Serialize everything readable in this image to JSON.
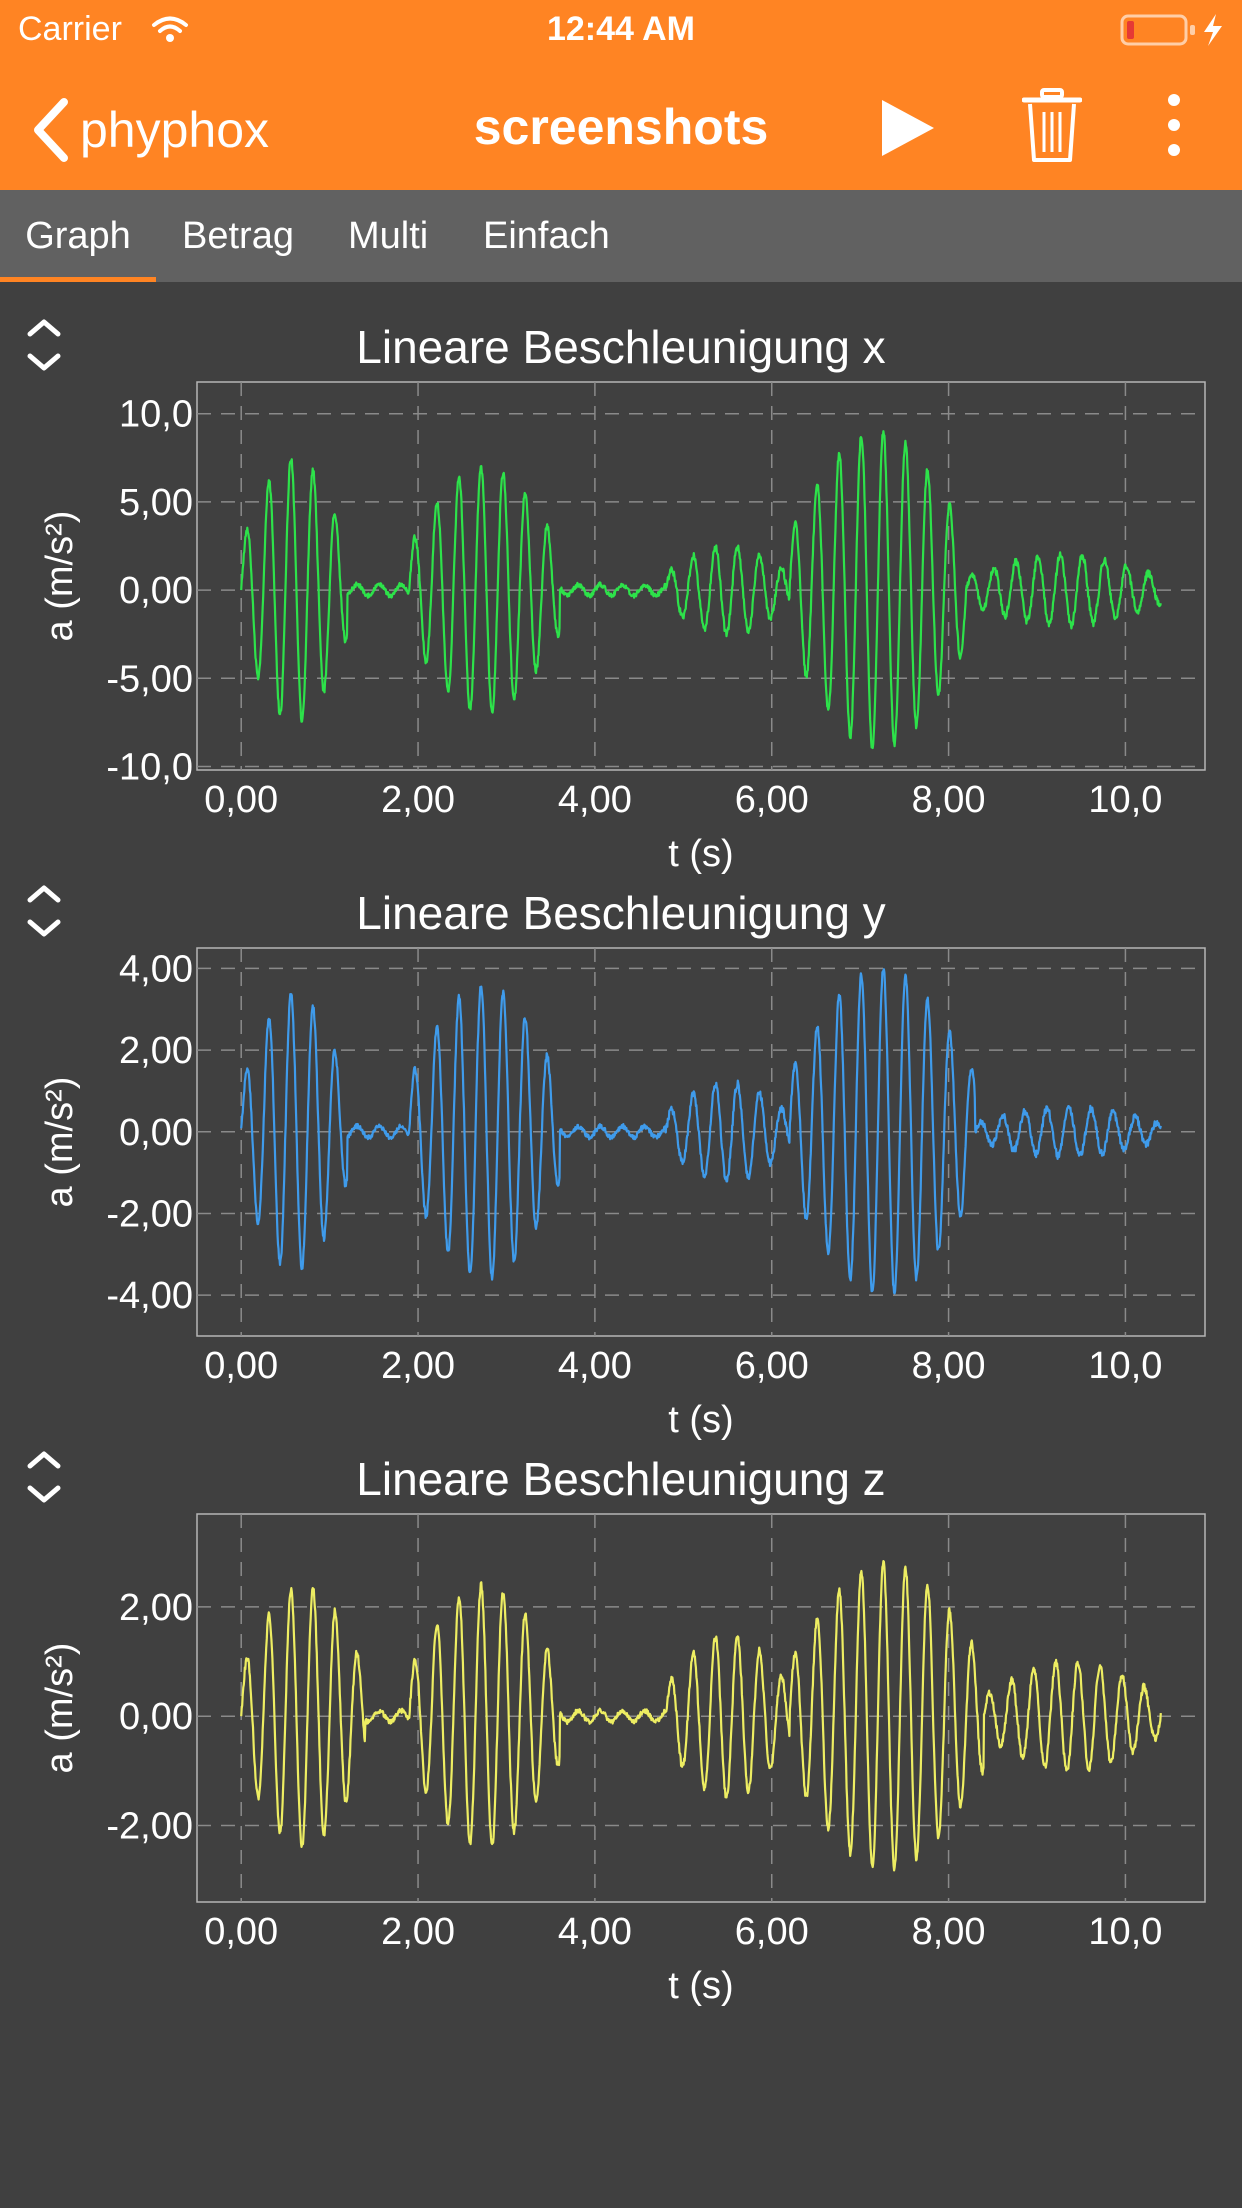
{
  "status_bar": {
    "carrier": "Carrier",
    "time": "12:44 AM",
    "battery_level": 0.1,
    "charging": true
  },
  "nav": {
    "back_label": "phyphox",
    "title": "screenshots",
    "play_icon": "play-icon",
    "delete_icon": "trash-icon",
    "more_icon": "more-vertical-icon"
  },
  "tabs": [
    {
      "label": "Graph",
      "selected": true
    },
    {
      "label": "Betrag",
      "selected": false
    },
    {
      "label": "Multi",
      "selected": false
    },
    {
      "label": "Einfach",
      "selected": false
    }
  ],
  "colors": {
    "accent": "#FF8423",
    "background": "#404040",
    "tabbar": "#616161",
    "x_series": "#2DE24A",
    "y_series": "#3F9BEB",
    "z_series": "#EDED62"
  },
  "chart_data": [
    {
      "type": "line",
      "title": "Lineare Beschleunigung x",
      "xlabel": "t (s)",
      "ylabel": "a (m/s²)",
      "xlim": [
        -0.5,
        10.9
      ],
      "ylim": [
        -10.2,
        11.8
      ],
      "xticks": [
        "0,00",
        "2,00",
        "4,00",
        "6,00",
        "8,00",
        "10,0"
      ],
      "yticks": [
        "10,0",
        "5,00",
        "0,00",
        "-5,00",
        "-10,0"
      ],
      "series": [
        {
          "color": "#2DE24A",
          "bursts": [
            {
              "t0": 0.0,
              "t1": 1.2,
              "amp": 7.5,
              "freq": 4.0
            },
            {
              "t0": 1.9,
              "t1": 3.6,
              "amp": 7.0,
              "freq": 4.0
            },
            {
              "t0": 4.8,
              "t1": 6.2,
              "amp": 2.5,
              "freq": 4.0
            },
            {
              "t0": 6.2,
              "t1": 8.2,
              "amp": 9.0,
              "freq": 4.0
            },
            {
              "t0": 8.2,
              "t1": 10.4,
              "amp": 2.0,
              "freq": 4.0
            }
          ],
          "t_end": 10.4
        }
      ]
    },
    {
      "type": "line",
      "title": "Lineare Beschleunigung y",
      "xlabel": "t (s)",
      "ylabel": "a (m/s²)",
      "xlim": [
        -0.5,
        10.9
      ],
      "ylim": [
        -5.0,
        4.5
      ],
      "xticks": [
        "0,00",
        "2,00",
        "4,00",
        "6,00",
        "8,00",
        "10,0"
      ],
      "yticks": [
        "4,00",
        "2,00",
        "0,00",
        "-2,00",
        "-4,00"
      ],
      "series": [
        {
          "color": "#3F9BEB",
          "bursts": [
            {
              "t0": 0.0,
              "t1": 1.2,
              "amp": 3.4,
              "freq": 4.0
            },
            {
              "t0": 1.9,
              "t1": 3.6,
              "amp": 3.6,
              "freq": 4.0
            },
            {
              "t0": 4.8,
              "t1": 6.2,
              "amp": 1.2,
              "freq": 4.0
            },
            {
              "t0": 6.2,
              "t1": 8.3,
              "amp": 4.0,
              "freq": 4.0
            },
            {
              "t0": 8.3,
              "t1": 10.4,
              "amp": 0.6,
              "freq": 4.0
            }
          ],
          "t_end": 10.4
        }
      ]
    },
    {
      "type": "line",
      "title": "Lineare Beschleunigung z",
      "xlabel": "t (s)",
      "ylabel": "a (m/s²)",
      "xlim": [
        -0.5,
        10.9
      ],
      "ylim": [
        -3.4,
        3.7
      ],
      "xticks": [
        "0,00",
        "2,00",
        "4,00",
        "6,00",
        "8,00",
        "10,0"
      ],
      "yticks": [
        "2,00",
        "0,00",
        "-2,00"
      ],
      "series": [
        {
          "color": "#EDED62",
          "bursts": [
            {
              "t0": 0.0,
              "t1": 1.4,
              "amp": 2.4,
              "freq": 4.0
            },
            {
              "t0": 1.9,
              "t1": 3.6,
              "amp": 2.4,
              "freq": 4.0
            },
            {
              "t0": 4.8,
              "t1": 6.2,
              "amp": 1.5,
              "freq": 4.0
            },
            {
              "t0": 6.2,
              "t1": 8.4,
              "amp": 2.8,
              "freq": 4.0
            },
            {
              "t0": 8.4,
              "t1": 10.4,
              "amp": 1.0,
              "freq": 4.0
            }
          ],
          "t_end": 10.4
        }
      ]
    }
  ]
}
